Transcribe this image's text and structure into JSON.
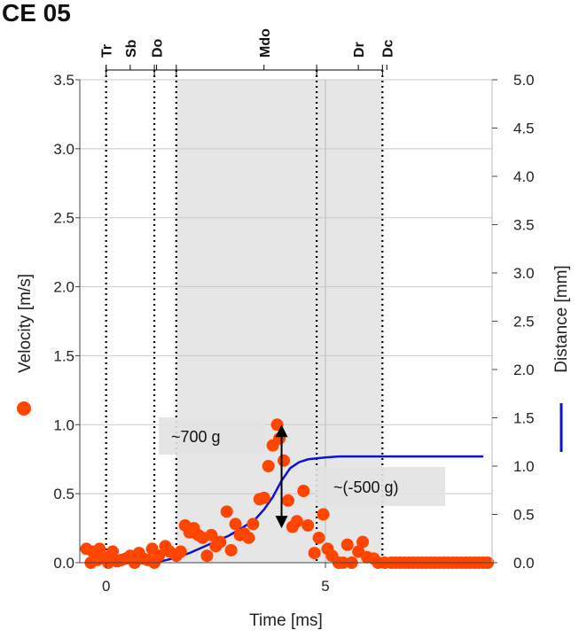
{
  "title": "CE 05",
  "colors": {
    "velocity": "#ff4500",
    "distance": "#1010d0",
    "shade": "#e6e6e6",
    "annotation_box": "#e2e2e2",
    "grid": "#c8c8c8"
  },
  "chart_data": {
    "type": "scatter",
    "xlabel": "Time [ms]",
    "ylabel_left": "Velocity [m/s]",
    "ylabel_right": "Distance [mm]",
    "xlim": [
      -0.6,
      8.8
    ],
    "ylim_left": [
      0,
      3.5
    ],
    "ylim_right": [
      0,
      5.0
    ],
    "x_ticks": [
      0,
      5
    ],
    "x_tick_labels": [
      "0",
      "5"
    ],
    "y_left_ticks": [
      0,
      0.5,
      1,
      1.5,
      2,
      2.5,
      3,
      3.5
    ],
    "y_left_tick_labels": [
      "0.0",
      "0.5",
      "1.0",
      "1.5",
      "2.0",
      "2.5",
      "3.0",
      "3.5"
    ],
    "y_right_ticks": [
      0,
      0.5,
      1,
      1.5,
      2,
      2.5,
      3,
      3.5,
      4,
      4.5,
      5
    ],
    "y_right_tick_labels": [
      "0.0",
      "0.5",
      "1.0",
      "1.5",
      "2.0",
      "2.5",
      "3.0",
      "3.5",
      "4.0",
      "4.5",
      "5.0"
    ],
    "grid": true,
    "phases": [
      {
        "label": "Tr",
        "x": 0.0
      },
      {
        "label": "Sb",
        "x": 0.55
      },
      {
        "label": "Do",
        "x": 1.15
      },
      {
        "label": "Mdo",
        "x": 3.6
      },
      {
        "label": "Dr",
        "x": 5.75
      },
      {
        "label": "Dc",
        "x": 6.4
      }
    ],
    "phase_bounds": [
      0.0,
      1.1,
      1.6,
      4.8,
      6.3
    ],
    "shaded_regions": [
      [
        1.6,
        4.8
      ],
      [
        4.8,
        6.3
      ]
    ],
    "extra_vertical_line_x": 5.0,
    "series": [
      {
        "name": "Velocity",
        "type": "scatter",
        "axis": "left",
        "x": [
          -0.45,
          -0.35,
          -0.3,
          -0.2,
          -0.15,
          -0.05,
          0.05,
          0.15,
          0.25,
          0.35,
          0.45,
          0.55,
          0.65,
          0.75,
          0.85,
          0.95,
          1.05,
          1.1,
          1.2,
          1.35,
          1.45,
          1.6,
          1.7,
          1.8,
          1.9,
          2.0,
          2.1,
          2.2,
          2.3,
          2.4,
          2.5,
          2.6,
          2.75,
          2.85,
          2.95,
          3.05,
          3.15,
          3.25,
          3.35,
          3.5,
          3.6,
          3.7,
          3.8,
          3.9,
          3.95,
          4.05,
          4.15,
          4.25,
          4.35,
          4.5,
          4.6,
          4.75,
          4.85,
          4.95,
          5.05,
          5.15,
          5.3,
          5.4,
          5.5,
          5.6,
          5.75,
          5.85,
          5.95,
          6.1,
          6.2,
          6.35,
          6.5,
          6.6,
          6.7,
          6.8,
          6.9,
          7.0,
          7.1,
          7.2,
          7.3,
          7.4,
          7.5,
          7.6,
          7.7,
          7.8,
          7.9,
          8.0,
          8.1,
          8.2,
          8.3,
          8.4,
          8.5,
          8.6,
          8.7
        ],
        "y": [
          0.1,
          0.0,
          0.08,
          0.02,
          0.1,
          0.04,
          0.0,
          0.08,
          0.01,
          0.02,
          0.03,
          0.05,
          0.0,
          0.07,
          0.03,
          0.02,
          0.1,
          0.0,
          0.05,
          0.12,
          0.08,
          0.05,
          0.08,
          0.27,
          0.22,
          0.25,
          0.2,
          0.18,
          0.05,
          0.2,
          0.12,
          0.15,
          0.37,
          0.09,
          0.28,
          0.2,
          0.21,
          0.18,
          0.28,
          0.46,
          0.47,
          0.7,
          0.85,
          1.0,
          0.9,
          0.74,
          0.45,
          0.26,
          0.3,
          0.52,
          0.27,
          0.07,
          0.18,
          0.35,
          0.1,
          0.05,
          0.0,
          0.0,
          0.13,
          0.0,
          0.08,
          0.15,
          0.04,
          0.03,
          0.0,
          0.0,
          0.0,
          0.0,
          0.0,
          0.0,
          0.0,
          0.0,
          0.0,
          0.0,
          0.0,
          0.0,
          0.0,
          0.0,
          0.0,
          0.0,
          0.0,
          0.0,
          0.0,
          0.0,
          0.0,
          0.0,
          0.0,
          0.0,
          0.0
        ]
      },
      {
        "name": "Distance",
        "type": "line",
        "axis": "right",
        "x": [
          1.0,
          1.3,
          1.6,
          1.9,
          2.2,
          2.5,
          2.8,
          3.1,
          3.4,
          3.6,
          3.8,
          4.0,
          4.2,
          4.4,
          4.6,
          4.8,
          5.0,
          5.3,
          5.6,
          6.0,
          6.5,
          7.0,
          7.5,
          8.0,
          8.6
        ],
        "y": [
          0.0,
          0.02,
          0.05,
          0.1,
          0.16,
          0.22,
          0.28,
          0.36,
          0.45,
          0.55,
          0.68,
          0.85,
          0.98,
          1.04,
          1.07,
          1.08,
          1.09,
          1.1,
          1.1,
          1.1,
          1.1,
          1.1,
          1.1,
          1.1,
          1.1
        ]
      }
    ],
    "annotations": [
      {
        "text": "~700 g",
        "x": 2.35,
        "y_left": 0.92
      },
      {
        "text": "~(-500 g)",
        "x": 5.6,
        "y_left": 0.53
      }
    ],
    "arrow": {
      "x": 4.0,
      "y_from_left": 0.25,
      "y_to_left": 1.0
    }
  }
}
